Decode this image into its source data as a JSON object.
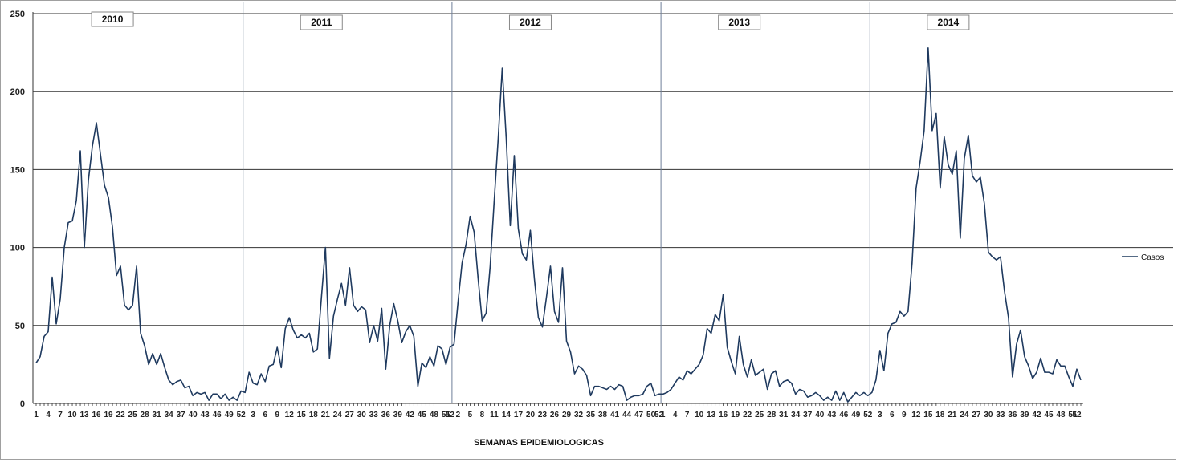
{
  "chart_data": {
    "type": "line",
    "title": "",
    "xlabel": "SEMANAS EPIDEMIOLOGICAS",
    "ylabel": "",
    "ylim": [
      0,
      250
    ],
    "yticks": [
      0,
      50,
      100,
      150,
      200,
      250
    ],
    "grid": "horizontal",
    "legend_position": "right",
    "line_color": "#1f3a5f",
    "years": [
      "2010",
      "2011",
      "2012",
      "2013",
      "2014"
    ],
    "weeks_per_year": 52,
    "series": [
      {
        "name": "Casos",
        "values": [
          26,
          30,
          43,
          46,
          81,
          51,
          67,
          100,
          116,
          117,
          130,
          162,
          100,
          143,
          165,
          180,
          160,
          140,
          132,
          113,
          82,
          88,
          63,
          60,
          63,
          88,
          45,
          37,
          25,
          32,
          25,
          32,
          23,
          15,
          12,
          14,
          15,
          10,
          11,
          5,
          7,
          6,
          7,
          2,
          6,
          6,
          3,
          6,
          2,
          4,
          2,
          8,
          7,
          20,
          13,
          12,
          19,
          14,
          24,
          25,
          36,
          23,
          48,
          55,
          47,
          42,
          44,
          42,
          45,
          33,
          35,
          68,
          100,
          29,
          56,
          67,
          77,
          63,
          87,
          63,
          59,
          62,
          60,
          39,
          50,
          40,
          61,
          22,
          50,
          64,
          53,
          39,
          46,
          50,
          43,
          11,
          26,
          23,
          30,
          24,
          37,
          35,
          25,
          36,
          38,
          65,
          90,
          102,
          120,
          110,
          80,
          53,
          58,
          88,
          130,
          170,
          215,
          170,
          114,
          159,
          112,
          96,
          92,
          111,
          80,
          55,
          49,
          68,
          88,
          59,
          52,
          87,
          40,
          33,
          19,
          24,
          22,
          18,
          5,
          11,
          11,
          10,
          9,
          11,
          9,
          12,
          11,
          2,
          4,
          5,
          5,
          6,
          11,
          13,
          5,
          6,
          6,
          7,
          9,
          13,
          17,
          15,
          21,
          19,
          22,
          25,
          31,
          48,
          45,
          57,
          53,
          70,
          36,
          27,
          19,
          43,
          25,
          17,
          28,
          18,
          20,
          22,
          9,
          19,
          21,
          11,
          14,
          15,
          13,
          6,
          9,
          8,
          4,
          5,
          7,
          5,
          2,
          4,
          2,
          8,
          2,
          7,
          1,
          4,
          7,
          5,
          7,
          5,
          7,
          15,
          34,
          21,
          45,
          51,
          52,
          59,
          56,
          59,
          90,
          138,
          155,
          175,
          228,
          175,
          186,
          138,
          171,
          153,
          147,
          162,
          106,
          157,
          172,
          146,
          142,
          145,
          128,
          97,
          94,
          92,
          94,
          72,
          55,
          17,
          38,
          47,
          30,
          24,
          16,
          20,
          29,
          20,
          20,
          19,
          28,
          24,
          24,
          17,
          11,
          22,
          15
        ]
      }
    ]
  }
}
